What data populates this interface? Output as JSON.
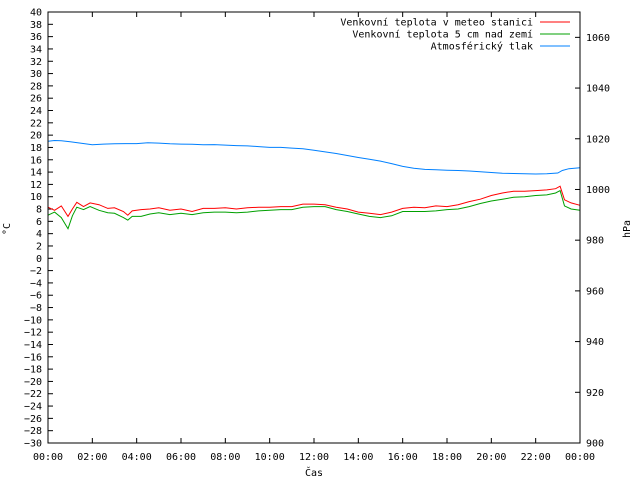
{
  "chart_data": {
    "type": "line",
    "xlabel": "Čas",
    "ylabel_left": "°C",
    "ylabel_right": "hPa",
    "x_ticks": [
      "00:00",
      "02:00",
      "04:00",
      "06:00",
      "08:00",
      "10:00",
      "12:00",
      "14:00",
      "16:00",
      "18:00",
      "20:00",
      "22:00",
      "00:00"
    ],
    "x_range_hours": [
      0,
      24
    ],
    "ylim_left": [
      -30,
      40
    ],
    "y_ticks_left": [
      40,
      38,
      36,
      34,
      32,
      30,
      28,
      26,
      24,
      22,
      20,
      18,
      16,
      14,
      12,
      10,
      8,
      6,
      4,
      2,
      0,
      -2,
      -4,
      -6,
      -8,
      -10,
      -12,
      -14,
      -16,
      -18,
      -20,
      -22,
      -24,
      -26,
      -28,
      -30
    ],
    "ylim_right": [
      900,
      1070
    ],
    "y_ticks_right": [
      1060,
      1040,
      1020,
      1000,
      980,
      960,
      940,
      920,
      900
    ],
    "legend_position": "top-right",
    "series": [
      {
        "name": "Venkovní teplota v meteo stanici",
        "color": "#ff0000",
        "axis": "left",
        "unit": "°C",
        "x": [
          0,
          0.3,
          0.6,
          0.9,
          1.1,
          1.3,
          1.6,
          1.9,
          2.3,
          2.7,
          3.0,
          3.4,
          3.6,
          3.8,
          4.2,
          4.6,
          5.0,
          5.5,
          6.0,
          6.5,
          7.0,
          7.5,
          8.0,
          8.5,
          9.0,
          9.5,
          10.0,
          10.5,
          11.0,
          11.5,
          12.0,
          12.5,
          13.0,
          13.5,
          14.0,
          14.5,
          15.0,
          15.5,
          16.0,
          16.5,
          17.0,
          17.5,
          18.0,
          18.5,
          19.0,
          19.5,
          20.0,
          20.5,
          21.0,
          21.5,
          22.0,
          22.5,
          22.9,
          23.1,
          23.3,
          23.6,
          24.0
        ],
        "values": [
          8.3,
          7.8,
          8.5,
          6.8,
          8.0,
          9.1,
          8.4,
          9.0,
          8.7,
          8.1,
          8.2,
          7.6,
          7.0,
          7.7,
          7.9,
          8.0,
          8.2,
          7.8,
          8.0,
          7.6,
          8.1,
          8.1,
          8.2,
          8.0,
          8.2,
          8.3,
          8.3,
          8.4,
          8.4,
          8.8,
          8.8,
          8.7,
          8.3,
          8.0,
          7.5,
          7.3,
          7.1,
          7.5,
          8.1,
          8.3,
          8.2,
          8.5,
          8.4,
          8.7,
          9.2,
          9.6,
          10.2,
          10.6,
          10.9,
          10.9,
          11.0,
          11.1,
          11.3,
          11.7,
          9.5,
          9.0,
          8.6
        ]
      },
      {
        "name": "Venkovní teplota 5 cm nad zemí",
        "color": "#00a000",
        "axis": "left",
        "unit": "°C",
        "x": [
          0,
          0.3,
          0.6,
          0.9,
          1.1,
          1.3,
          1.6,
          1.9,
          2.3,
          2.7,
          3.0,
          3.4,
          3.6,
          3.8,
          4.2,
          4.6,
          5.0,
          5.5,
          6.0,
          6.5,
          7.0,
          7.5,
          8.0,
          8.5,
          9.0,
          9.5,
          10.0,
          10.5,
          11.0,
          11.5,
          12.0,
          12.5,
          13.0,
          13.5,
          14.0,
          14.5,
          15.0,
          15.5,
          16.0,
          16.5,
          17.0,
          17.5,
          18.0,
          18.5,
          19.0,
          19.5,
          20.0,
          20.5,
          21.0,
          21.5,
          22.0,
          22.5,
          22.9,
          23.1,
          23.3,
          23.6,
          24.0
        ],
        "values": [
          7.0,
          7.5,
          6.6,
          4.8,
          6.9,
          8.3,
          7.9,
          8.4,
          7.8,
          7.4,
          7.3,
          6.6,
          6.2,
          6.8,
          6.8,
          7.2,
          7.4,
          7.1,
          7.3,
          7.1,
          7.4,
          7.5,
          7.5,
          7.4,
          7.5,
          7.7,
          7.8,
          7.9,
          7.9,
          8.3,
          8.4,
          8.4,
          7.9,
          7.6,
          7.2,
          6.8,
          6.6,
          6.9,
          7.6,
          7.6,
          7.6,
          7.7,
          7.9,
          8.0,
          8.4,
          8.9,
          9.3,
          9.6,
          9.9,
          10.0,
          10.2,
          10.3,
          10.6,
          11.0,
          8.5,
          8.0,
          7.8
        ]
      },
      {
        "name": "Atmosférický tlak",
        "color": "#0080ff",
        "axis": "right",
        "unit": "hPa",
        "x": [
          0,
          0.3,
          0.6,
          1.0,
          1.5,
          2.0,
          2.5,
          3.0,
          3.5,
          4.0,
          4.5,
          5.0,
          5.5,
          6.0,
          6.5,
          7.0,
          7.5,
          8.0,
          8.5,
          9.0,
          9.5,
          10.0,
          10.5,
          11.0,
          11.5,
          12.0,
          12.5,
          13.0,
          13.5,
          14.0,
          14.5,
          15.0,
          15.5,
          16.0,
          16.5,
          17.0,
          17.5,
          18.0,
          18.5,
          19.0,
          19.5,
          20.0,
          20.5,
          21.0,
          21.5,
          22.0,
          22.5,
          23.0,
          23.2,
          23.5,
          24.0
        ],
        "values": [
          1019.0,
          1019.3,
          1019.2,
          1018.8,
          1018.2,
          1017.6,
          1017.9,
          1018.0,
          1018.1,
          1018.1,
          1018.4,
          1018.3,
          1018.0,
          1017.9,
          1017.8,
          1017.6,
          1017.7,
          1017.5,
          1017.3,
          1017.2,
          1016.9,
          1016.6,
          1016.6,
          1016.3,
          1016.1,
          1015.5,
          1014.8,
          1014.2,
          1013.4,
          1012.6,
          1011.9,
          1011.2,
          1010.2,
          1009.1,
          1008.4,
          1007.9,
          1007.8,
          1007.6,
          1007.5,
          1007.3,
          1007.0,
          1006.7,
          1006.4,
          1006.3,
          1006.2,
          1006.1,
          1006.2,
          1006.5,
          1007.5,
          1008.2,
          1008.6
        ]
      }
    ]
  }
}
